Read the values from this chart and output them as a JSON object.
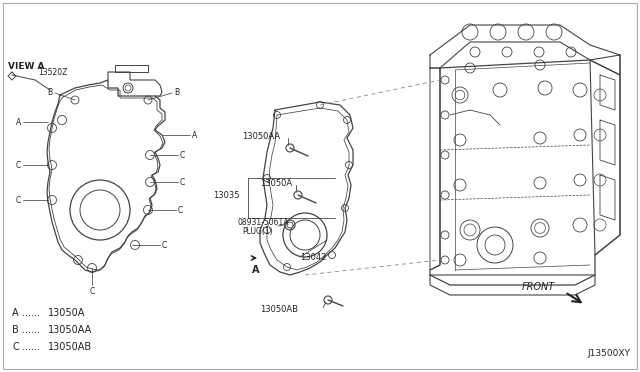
{
  "bg_color": "#ffffff",
  "line_color": "#444444",
  "text_color": "#222222",
  "diagram_id": "J13500XY",
  "legend": [
    {
      "label": "A",
      "part": "13050A"
    },
    {
      "label": "B",
      "part": "13050AA"
    },
    {
      "label": "C",
      "part": "13050AB"
    }
  ]
}
